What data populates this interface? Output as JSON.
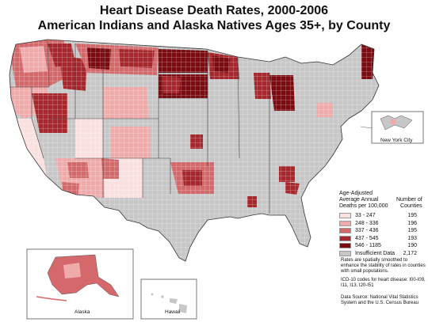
{
  "title_line1": "Heart Disease Death Rates, 2000-2006",
  "title_line2": "American Indians and Alaska Natives Ages 35+, by County",
  "legend": {
    "header_left": [
      "Age-Adjusted",
      "Average Annual",
      "Deaths per 100,000"
    ],
    "header_right": [
      "Number of",
      "Counties"
    ],
    "items": [
      {
        "range": "33 - 247",
        "count": "195",
        "color": "#fbe0e0"
      },
      {
        "range": "248 - 336",
        "count": "196",
        "color": "#f0aaaa"
      },
      {
        "range": "337 - 436",
        "count": "195",
        "color": "#d4686b"
      },
      {
        "range": "437 - 545",
        "count": "193",
        "color": "#a8272d"
      },
      {
        "range": "546 - 1185",
        "count": "190",
        "color": "#7d0a10"
      },
      {
        "range": "Insufficient Data",
        "count": "2,172",
        "color": "#c7c7c7"
      }
    ]
  },
  "notes": {
    "smoothing": "Rates are spatially smoothed to enhance the stability of rates in counties with small populations.",
    "icd": "ICD-10 codes for heart disease: I00-I09, I11, I13, I20-I51",
    "source": "Data Source: National Vital Statistics System and the U.S. Census Bureau"
  },
  "insets": {
    "nyc": "New York City",
    "alaska": "Alaska",
    "hawaii": "Hawaii"
  }
}
